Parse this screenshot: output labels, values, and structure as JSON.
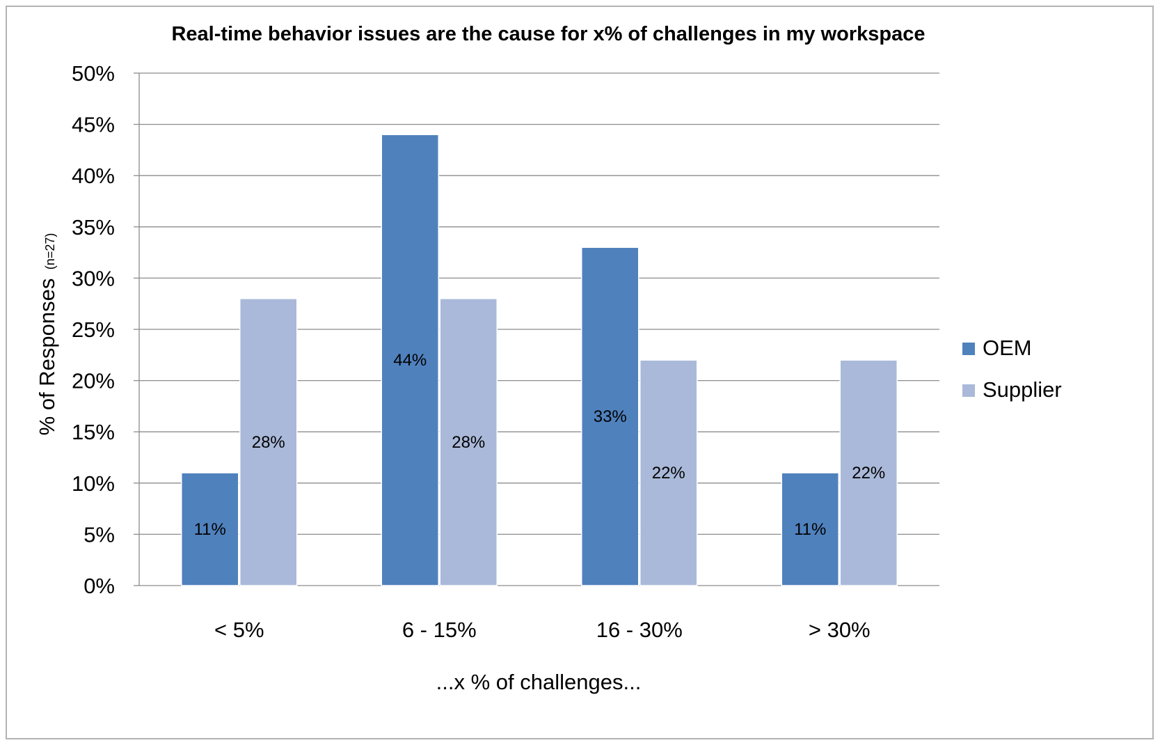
{
  "chart_data": {
    "type": "bar",
    "title": "Real-time behavior issues are the cause for x% of challenges in my workspace",
    "xlabel": "...x % of challenges...",
    "ylabel": "% of Responses",
    "ylabel_note": "(n=27)",
    "categories": [
      "< 5%",
      "6 - 15%",
      "16 - 30%",
      "> 30%"
    ],
    "series": [
      {
        "name": "OEM",
        "values": [
          11,
          44,
          33,
          11
        ],
        "labels": [
          "11%",
          "44%",
          "33%",
          "11%"
        ],
        "color": "#4f81bd"
      },
      {
        "name": "Supplier",
        "values": [
          28,
          28,
          22,
          22
        ],
        "labels": [
          "28%",
          "28%",
          "22%",
          "22%"
        ],
        "color": "#aab9d9"
      }
    ],
    "ylim": [
      0,
      50
    ],
    "yticks": [
      "0%",
      "5%",
      "10%",
      "15%",
      "20%",
      "25%",
      "30%",
      "35%",
      "40%",
      "45%",
      "50%"
    ],
    "grid": true,
    "legend_position": "right"
  }
}
